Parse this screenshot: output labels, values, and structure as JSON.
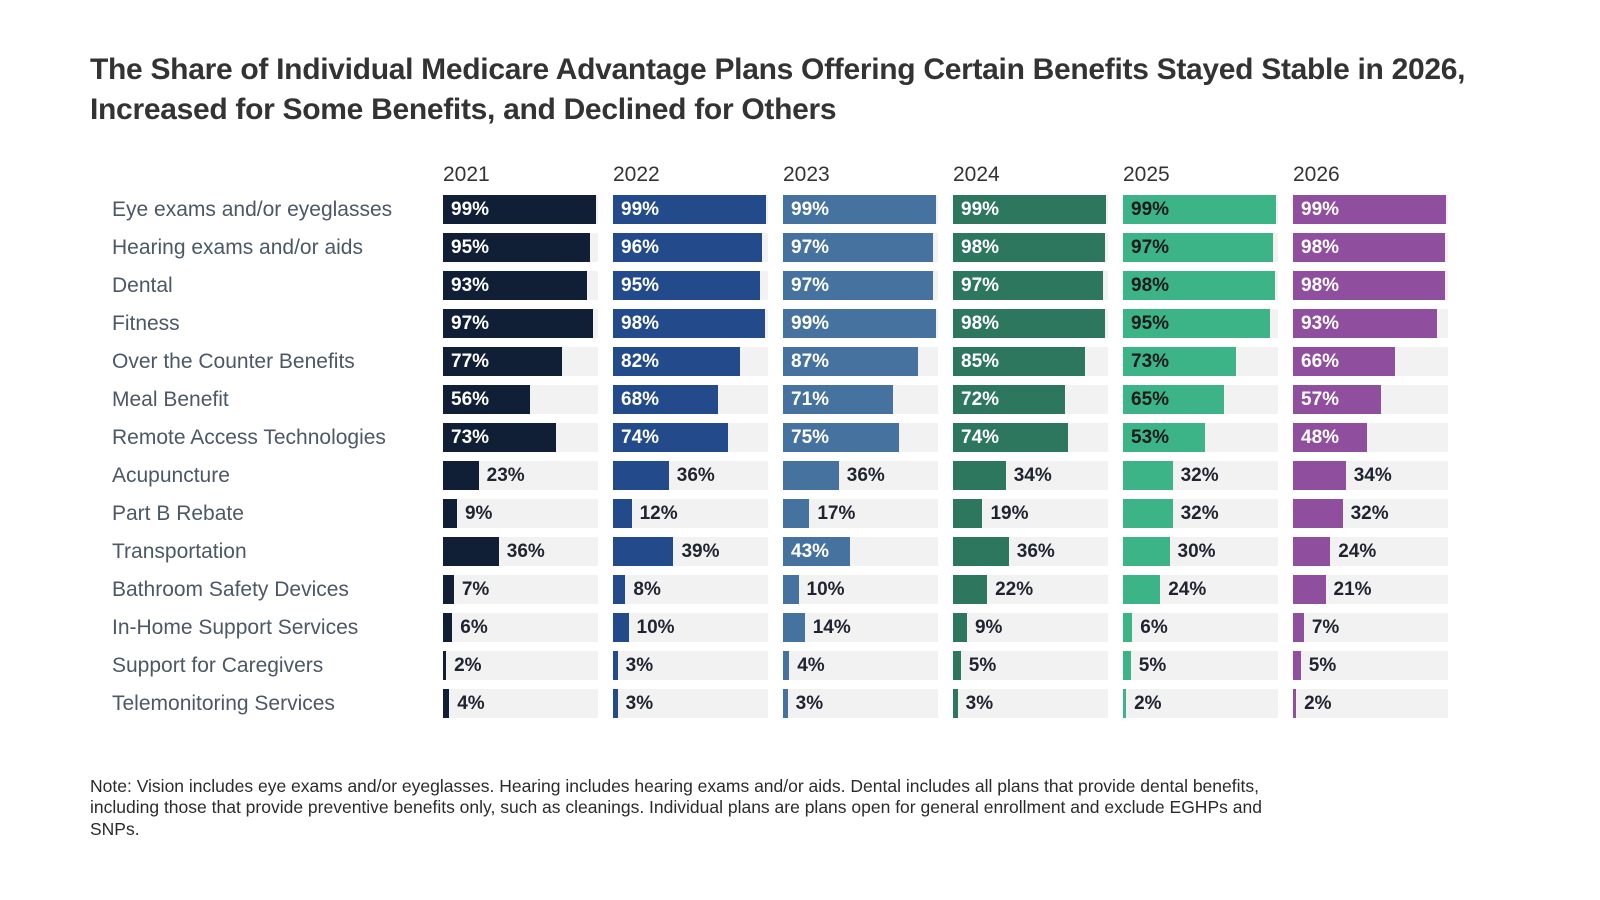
{
  "header": {
    "title": "The Share of Individual Medicare Advantage Plans Offering Certain Benefits Stayed Stable in 2026, Increased for Some Benefits, and Declined for Others"
  },
  "footer": {
    "note": "Note: Vision includes eye exams and/or eyeglasses. Hearing includes hearing exams and/or aids. Dental includes all plans that provide dental benefits, including those that provide preventive benefits only, such as cleanings. Individual plans are plans open for general enrollment and exclude EGHPs and SNPs."
  },
  "chart_data": {
    "type": "bar",
    "orientation": "horizontal",
    "layout": "small-multiples-by-year",
    "title": "The Share of Individual Medicare Advantage Plans Offering Certain Benefits Stayed Stable in 2026, Increased for Some Benefits, and Declined for Others",
    "categories": [
      "Eye exams and/or eyeglasses",
      "Hearing exams and/or aids",
      "Dental",
      "Fitness",
      "Over the Counter Benefits",
      "Meal Benefit",
      "Remote Access Technologies",
      "Acupuncture",
      "Part B Rebate",
      "Transportation",
      "Bathroom Safety Devices",
      "In-Home Support Services",
      "Support for Caregivers",
      "Telemonitoring Services"
    ],
    "series": [
      {
        "name": "2021",
        "color": "#111f36",
        "label_color_inside": "#ffffff",
        "values": [
          99,
          95,
          93,
          97,
          77,
          56,
          73,
          23,
          9,
          36,
          7,
          6,
          2,
          4
        ]
      },
      {
        "name": "2022",
        "color": "#234a8b",
        "label_color_inside": "#ffffff",
        "values": [
          99,
          96,
          95,
          98,
          82,
          68,
          74,
          36,
          12,
          39,
          8,
          10,
          3,
          3
        ]
      },
      {
        "name": "2023",
        "color": "#46729f",
        "label_color_inside": "#ffffff",
        "values": [
          99,
          97,
          97,
          99,
          87,
          71,
          75,
          36,
          17,
          43,
          10,
          14,
          4,
          3
        ]
      },
      {
        "name": "2024",
        "color": "#2e775f",
        "label_color_inside": "#ffffff",
        "values": [
          99,
          98,
          97,
          98,
          85,
          72,
          74,
          34,
          19,
          36,
          22,
          9,
          5,
          3
        ]
      },
      {
        "name": "2025",
        "color": "#3cb487",
        "label_color_inside": "#1a1a1a",
        "values": [
          99,
          97,
          98,
          95,
          73,
          65,
          53,
          32,
          32,
          30,
          24,
          6,
          5,
          2
        ]
      },
      {
        "name": "2026",
        "color": "#8f4f9e",
        "label_color_inside": "#ffffff",
        "values": [
          99,
          98,
          98,
          93,
          66,
          57,
          48,
          34,
          32,
          24,
          21,
          7,
          5,
          2
        ]
      }
    ],
    "value_suffix": "%",
    "xlim": [
      0,
      100
    ],
    "grid": false,
    "legend_position": "column-headers",
    "track_color": "#f2f2f2",
    "outside_label_color": "#1f2430",
    "inside_label_threshold": 43
  }
}
